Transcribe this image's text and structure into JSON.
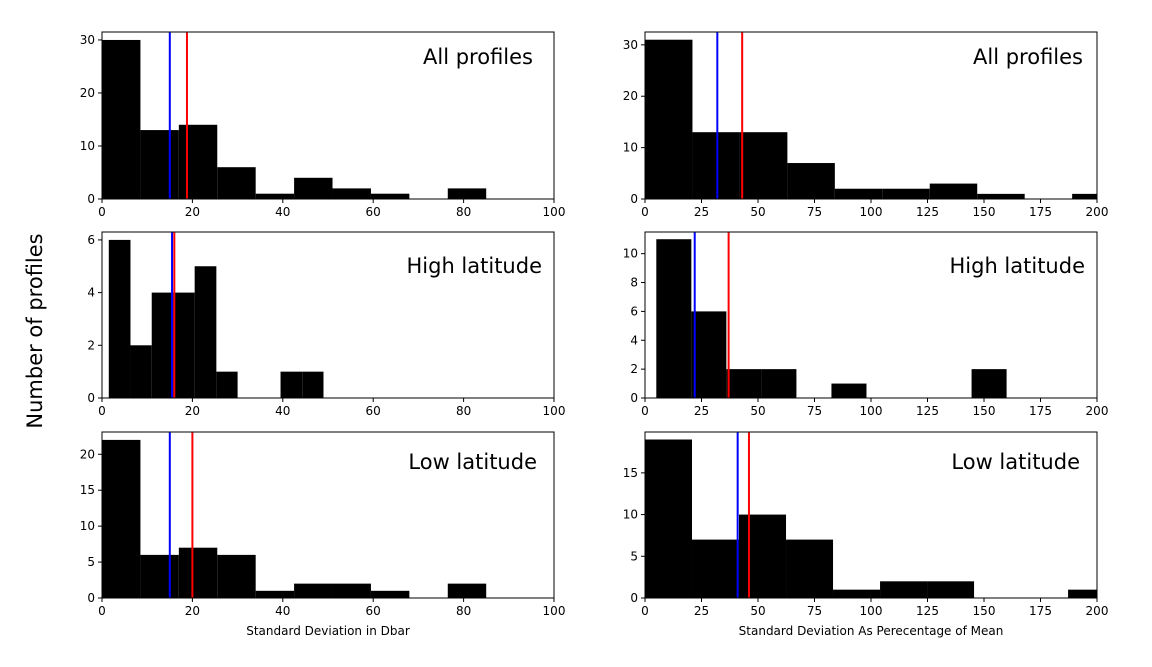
{
  "figure": {
    "ylabel": "Number of profiles",
    "colors": {
      "bars": "#000000",
      "median_line": "#0000ff",
      "mean_line": "#ff0000"
    }
  },
  "chart_data": [
    {
      "type": "bar",
      "panel": "left-1",
      "title": "All profiles",
      "xlabel": "",
      "xlim": [
        0,
        100
      ],
      "ylim": [
        0,
        31.5
      ],
      "xticks": [
        0,
        20,
        40,
        60,
        80,
        100
      ],
      "yticks": [
        0,
        10,
        20,
        30
      ],
      "bins": [
        [
          0,
          8.5,
          30
        ],
        [
          8.5,
          17,
          13
        ],
        [
          17,
          25.5,
          14
        ],
        [
          25.5,
          34,
          6
        ],
        [
          34,
          42.5,
          1
        ],
        [
          42.5,
          51,
          4
        ],
        [
          51,
          59.5,
          2
        ],
        [
          59.5,
          68,
          1
        ],
        [
          68,
          76.5,
          0
        ],
        [
          76.5,
          85,
          2
        ]
      ],
      "vlines": {
        "blue": 15,
        "red": 18.8
      }
    },
    {
      "type": "bar",
      "panel": "left-2",
      "title": "High latitude",
      "xlabel": "",
      "xlim": [
        0,
        100
      ],
      "ylim": [
        0,
        6.3
      ],
      "xticks": [
        0,
        20,
        40,
        60,
        80,
        100
      ],
      "yticks": [
        0,
        2,
        4,
        6
      ],
      "bins": [
        [
          1.5,
          6.3,
          6
        ],
        [
          6.3,
          11,
          2
        ],
        [
          11,
          15.8,
          4
        ],
        [
          15.8,
          20.5,
          4
        ],
        [
          20.5,
          25.3,
          5
        ],
        [
          25.3,
          30,
          1
        ],
        [
          30,
          34.8,
          0
        ],
        [
          34.8,
          39.5,
          0
        ],
        [
          39.5,
          44.3,
          1
        ],
        [
          44.3,
          49,
          1
        ]
      ],
      "vlines": {
        "blue": 15.5,
        "red": 16
      }
    },
    {
      "type": "bar",
      "panel": "left-3",
      "title": "Low latitude",
      "xlabel": "Standard Deviation in Dbar",
      "xlim": [
        0,
        100
      ],
      "ylim": [
        0,
        23.1
      ],
      "xticks": [
        0,
        20,
        40,
        60,
        80,
        100
      ],
      "yticks": [
        0,
        5,
        10,
        15,
        20
      ],
      "bins": [
        [
          0,
          8.5,
          22
        ],
        [
          8.5,
          17,
          6
        ],
        [
          17,
          25.5,
          7
        ],
        [
          25.5,
          34,
          6
        ],
        [
          34,
          42.5,
          1
        ],
        [
          42.5,
          51,
          2
        ],
        [
          51,
          59.5,
          2
        ],
        [
          59.5,
          68,
          1
        ],
        [
          68,
          76.5,
          0
        ],
        [
          76.5,
          85,
          2
        ]
      ],
      "vlines": {
        "blue": 15,
        "red": 20
      }
    },
    {
      "type": "bar",
      "panel": "right-1",
      "title": "All profiles",
      "xlabel": "",
      "xlim": [
        0,
        200
      ],
      "ylim": [
        0,
        32.5
      ],
      "xticks": [
        0,
        25,
        50,
        75,
        100,
        125,
        150,
        175,
        200
      ],
      "yticks": [
        0,
        10,
        20,
        30
      ],
      "bins": [
        [
          0,
          21,
          31
        ],
        [
          21,
          42,
          13
        ],
        [
          42,
          63,
          13
        ],
        [
          63,
          84,
          7
        ],
        [
          84,
          105,
          2
        ],
        [
          105,
          126,
          2
        ],
        [
          126,
          147,
          3
        ],
        [
          147,
          168,
          1
        ],
        [
          168,
          189,
          0
        ],
        [
          189,
          210,
          1
        ]
      ],
      "vlines": {
        "blue": 32,
        "red": 43
      }
    },
    {
      "type": "bar",
      "panel": "right-2",
      "title": "High latitude",
      "xlabel": "",
      "xlim": [
        0,
        200
      ],
      "ylim": [
        0,
        11.5
      ],
      "xticks": [
        0,
        25,
        50,
        75,
        100,
        125,
        150,
        175,
        200
      ],
      "yticks": [
        0,
        2,
        4,
        6,
        8,
        10
      ],
      "bins": [
        [
          5,
          20.5,
          11
        ],
        [
          20.5,
          36,
          6
        ],
        [
          36,
          51.5,
          2
        ],
        [
          51.5,
          67,
          2
        ],
        [
          67,
          82.5,
          0
        ],
        [
          82.5,
          98,
          1
        ],
        [
          98,
          113.5,
          0
        ],
        [
          113.5,
          129,
          0
        ],
        [
          129,
          144.5,
          0
        ],
        [
          144.5,
          160,
          2
        ]
      ],
      "vlines": {
        "blue": 22,
        "red": 37
      }
    },
    {
      "type": "bar",
      "panel": "right-3",
      "title": "Low latitude",
      "xlabel": "Standard Deviation As Perecentage of Mean",
      "xlim": [
        0,
        200
      ],
      "ylim": [
        0,
        19.9
      ],
      "xticks": [
        0,
        25,
        50,
        75,
        100,
        125,
        150,
        175,
        200
      ],
      "yticks": [
        0,
        5,
        10,
        15
      ],
      "bins": [
        [
          0,
          20.8,
          19
        ],
        [
          20.8,
          41.6,
          7
        ],
        [
          41.6,
          62.4,
          10
        ],
        [
          62.4,
          83.2,
          7
        ],
        [
          83.2,
          104,
          1
        ],
        [
          104,
          124.8,
          2
        ],
        [
          124.8,
          145.6,
          2
        ],
        [
          145.6,
          166.4,
          0
        ],
        [
          166.4,
          187.2,
          0
        ],
        [
          187.2,
          208,
          1
        ]
      ],
      "vlines": {
        "blue": 41,
        "red": 46
      }
    }
  ]
}
